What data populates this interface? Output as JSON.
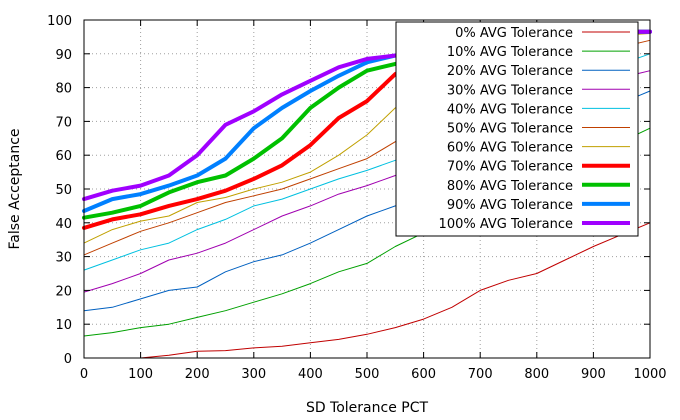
{
  "chart_data": {
    "type": "line",
    "xlabel": "SD Tolerance PCT",
    "ylabel": "False Acceptance",
    "xlim": [
      0,
      1000
    ],
    "ylim": [
      0,
      100
    ],
    "xticks": [
      0,
      100,
      200,
      300,
      400,
      500,
      600,
      700,
      800,
      900,
      1000
    ],
    "yticks": [
      0,
      10,
      20,
      30,
      40,
      50,
      60,
      70,
      80,
      90,
      100
    ],
    "grid": true,
    "legend_position": "top-right",
    "x": [
      0,
      50,
      100,
      150,
      200,
      250,
      300,
      350,
      400,
      450,
      500,
      550,
      600,
      650,
      700,
      750,
      800,
      850,
      900,
      950,
      1000
    ],
    "series": [
      {
        "name": "0% AVG Tolerance",
        "color": "#c00000",
        "width": "thin",
        "values": [
          0,
          0,
          0,
          0.8,
          2.0,
          2.2,
          3.0,
          3.5,
          4.5,
          5.5,
          7.0,
          9.0,
          11.5,
          15.0,
          20.0,
          23.0,
          25.0,
          29.0,
          33.0,
          36.5,
          40.0
        ]
      },
      {
        "name": "10% AVG Tolerance",
        "color": "#00a000",
        "width": "thin",
        "values": [
          6.5,
          7.5,
          9.0,
          10.0,
          12.0,
          14.0,
          16.5,
          19.0,
          22.0,
          25.5,
          28.0,
          33.0,
          37.0,
          42.0,
          46.0,
          50.0,
          54.0,
          57.0,
          61.0,
          64.0,
          68.0
        ]
      },
      {
        "name": "20% AVG Tolerance",
        "color": "#0060c0",
        "width": "thin",
        "values": [
          14.0,
          15.0,
          17.5,
          20.0,
          21.0,
          25.5,
          28.5,
          30.5,
          34.0,
          38.0,
          42.0,
          45.0,
          49.0,
          53.0,
          57.0,
          61.0,
          65.0,
          69.0,
          72.0,
          75.5,
          79.0
        ]
      },
      {
        "name": "30% AVG Tolerance",
        "color": "#a000b0",
        "width": "thin",
        "values": [
          19.5,
          22.0,
          25.0,
          29.0,
          31.0,
          34.0,
          38.0,
          42.0,
          45.0,
          48.5,
          51.0,
          54.0,
          58.0,
          62.0,
          65.0,
          69.0,
          73.0,
          77.0,
          80.0,
          83.0,
          85.0
        ]
      },
      {
        "name": "40% AVG Tolerance",
        "color": "#00c0e0",
        "width": "thin",
        "values": [
          26.0,
          29.0,
          32.0,
          34.0,
          38.0,
          41.0,
          45.0,
          47.0,
          50.0,
          53.0,
          55.5,
          58.5,
          62.0,
          66.0,
          70.0,
          73.0,
          77.0,
          81.0,
          84.0,
          87.0,
          90.0
        ]
      },
      {
        "name": "50% AVG Tolerance",
        "color": "#c04000",
        "width": "thin",
        "values": [
          30.5,
          34.0,
          37.5,
          40.0,
          43.0,
          46.0,
          48.0,
          50.0,
          53.0,
          56.0,
          59.0,
          64.0,
          68.0,
          72.0,
          76.0,
          80.0,
          83.0,
          86.0,
          89.0,
          92.0,
          94.0
        ]
      },
      {
        "name": "60% AVG Tolerance",
        "color": "#c0a000",
        "width": "thin",
        "values": [
          34.0,
          38.0,
          40.5,
          42.0,
          46.0,
          47.5,
          50.0,
          52.0,
          55.0,
          60.0,
          66.0,
          74.0,
          79.0,
          83.0,
          86.0,
          89.0,
          91.0,
          93.0,
          94.5,
          95.5,
          96.0
        ]
      },
      {
        "name": "70% AVG Tolerance",
        "color": "#ff0000",
        "width": "thick",
        "values": [
          38.5,
          41.0,
          42.5,
          45.0,
          47.0,
          49.5,
          53.0,
          57.0,
          63.0,
          71.0,
          76.0,
          84.0,
          88.0,
          91.0,
          93.0,
          94.5,
          95.5,
          96.0,
          96.0,
          96.5,
          96.5
        ]
      },
      {
        "name": "80% AVG Tolerance",
        "color": "#00c000",
        "width": "thick",
        "values": [
          41.5,
          43.0,
          45.0,
          49.0,
          52.0,
          54.0,
          59.0,
          65.0,
          74.0,
          80.0,
          85.0,
          87.0,
          89.0,
          91.5,
          93.0,
          94.5,
          95.5,
          96.0,
          96.5,
          96.5,
          96.5
        ]
      },
      {
        "name": "90% AVG Tolerance",
        "color": "#0080ff",
        "width": "thick",
        "values": [
          43.5,
          47.0,
          48.5,
          51.0,
          54.0,
          59.0,
          68.0,
          74.0,
          79.0,
          83.5,
          87.5,
          89.5,
          91.0,
          92.5,
          94.0,
          95.0,
          95.5,
          96.0,
          96.5,
          96.5,
          96.5
        ]
      },
      {
        "name": "100% AVG Tolerance",
        "color": "#a000ff",
        "width": "thick",
        "values": [
          47.0,
          49.5,
          51.0,
          54.0,
          60.0,
          69.0,
          73.0,
          78.0,
          82.0,
          86.0,
          88.5,
          89.5,
          91.0,
          92.5,
          94.0,
          95.0,
          95.5,
          96.0,
          96.5,
          96.5,
          96.5
        ]
      }
    ]
  }
}
